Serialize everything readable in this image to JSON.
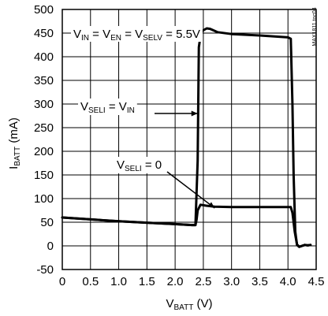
{
  "chart_data": {
    "type": "line",
    "title": "",
    "watermark": "MAX1811 toc04",
    "xlabel": {
      "main": "V",
      "sub": "BATT",
      "unit": " (V)"
    },
    "ylabel": {
      "main": "I",
      "sub": "BATT",
      "unit": " (mA)"
    },
    "xlim": [
      0,
      4.5
    ],
    "ylim": [
      -50,
      500
    ],
    "xticks": [
      0,
      0.5,
      1.0,
      1.5,
      2.0,
      2.5,
      3.0,
      3.5,
      4.0,
      4.5
    ],
    "xtick_labels": [
      "0",
      "0.5",
      "1.0",
      "1.5",
      "2.0",
      "2.5",
      "3.0",
      "3.5",
      "4.0",
      "4.5"
    ],
    "yticks": [
      -50,
      0,
      50,
      100,
      150,
      200,
      250,
      300,
      350,
      400,
      450,
      500
    ],
    "ytick_labels": [
      "-50",
      "0",
      "50",
      "100",
      "150",
      "200",
      "250",
      "300",
      "350",
      "400",
      "450",
      "500"
    ],
    "grid": true,
    "conditions": {
      "parts": [
        {
          "t": "V",
          "s": "IN"
        },
        {
          "t": " = V",
          "s": "EN"
        },
        {
          "t": " = V",
          "s": "SELV"
        },
        {
          "t": " = 5.5V",
          "s": ""
        }
      ]
    },
    "annotations": [
      {
        "parts": [
          {
            "t": "V",
            "s": "SELI"
          },
          {
            "t": " = V",
            "s": "IN"
          }
        ],
        "target_series": 0,
        "arrow_to": [
          2.4,
          280
        ]
      },
      {
        "parts": [
          {
            "t": "V",
            "s": "SELI"
          },
          {
            "t": " = 0",
            "s": ""
          }
        ],
        "target_series": 1,
        "arrow_to": [
          2.7,
          80
        ]
      }
    ],
    "series": [
      {
        "x": [
          0,
          0.5,
          1.0,
          1.5,
          2.0,
          2.3,
          2.36,
          2.4,
          2.42,
          2.46,
          2.5,
          2.56,
          2.62,
          2.75,
          3.0,
          3.5,
          4.0,
          4.05,
          4.08,
          4.1,
          4.13,
          4.16,
          4.2,
          4.3,
          4.35,
          4.4
        ],
        "y": [
          60,
          56,
          52,
          49,
          46,
          44,
          44,
          180,
          420,
          452,
          456,
          460,
          459,
          452,
          448,
          445,
          441,
          438,
          300,
          150,
          30,
          2,
          -2,
          2,
          1,
          2
        ]
      },
      {
        "x": [
          0,
          0.5,
          1.0,
          1.5,
          2.0,
          2.3,
          2.36,
          2.38,
          2.4,
          2.45,
          2.55,
          2.7,
          3.0,
          3.5,
          4.0,
          4.05,
          4.08,
          4.12,
          4.16,
          4.2,
          4.3,
          4.35,
          4.4
        ],
        "y": [
          60,
          56,
          52,
          49,
          46,
          44,
          44,
          55,
          75,
          87,
          85,
          83,
          82,
          82,
          82,
          82,
          70,
          30,
          3,
          -2,
          2,
          1,
          2
        ]
      }
    ]
  }
}
